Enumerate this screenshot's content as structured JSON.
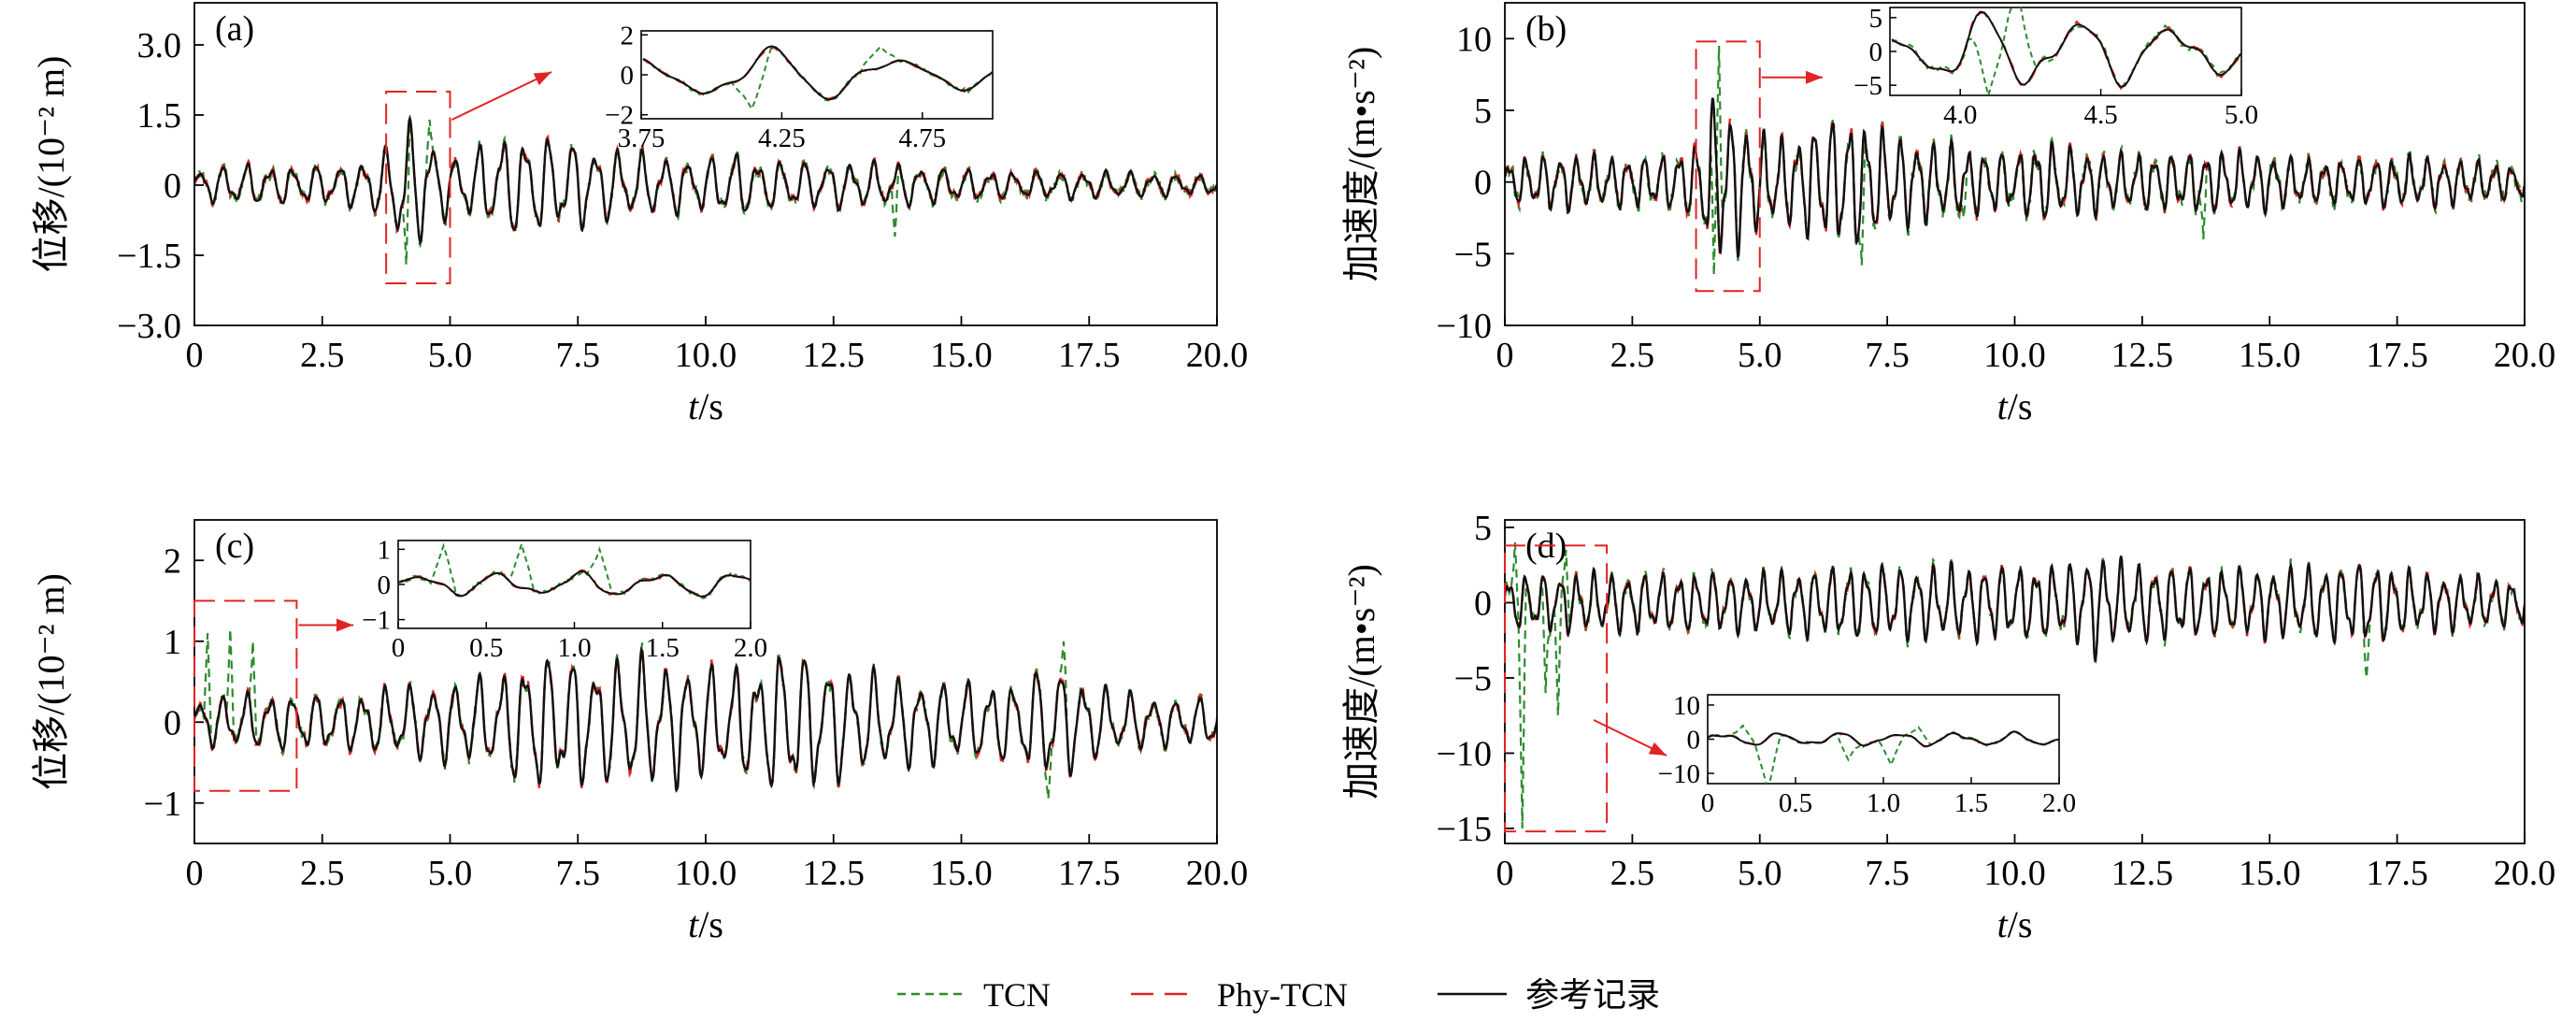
{
  "figure": {
    "legend": [
      {
        "label": "TCN",
        "color": "#2e8b2e",
        "dash": "dashed"
      },
      {
        "label": "Phy-TCN",
        "color": "#e02424",
        "dash": "longdash"
      },
      {
        "label": "参考记录",
        "color": "#111111",
        "dash": "solid"
      }
    ]
  },
  "chart_data": [
    {
      "id": "a",
      "type": "line",
      "panel_label": "(a)",
      "xlabel_italic": "t",
      "xlabel_rest": "/s",
      "ylabel": "位移/(10⁻² m)",
      "xlim": [
        0,
        20
      ],
      "ylim": [
        -3,
        3.9
      ],
      "xticks": [
        0,
        2.5,
        5,
        7.5,
        10,
        12.5,
        15,
        17.5,
        20
      ],
      "xtick_labels": [
        "0",
        "2.5",
        "5.0",
        "7.5",
        "10.0",
        "12.5",
        "15.0",
        "17.5",
        "20.0"
      ],
      "yticks": [
        -3,
        -1.5,
        0,
        1.5,
        3
      ],
      "ytick_labels": [
        "−3.0",
        "−1.5",
        "0",
        "1.5",
        "3.0"
      ],
      "series": [
        {
          "name": "参考记录",
          "color": "#111111",
          "dash": "solid",
          "x": [
            0,
            1,
            2,
            3,
            3.7,
            4.0,
            4.3,
            4.6,
            5.0,
            5.5,
            6,
            6.5,
            7,
            7.5,
            8,
            9,
            10,
            10.5,
            11,
            12,
            13,
            14,
            15,
            16,
            17,
            18,
            19,
            20
          ],
          "amplitude": [
            0.35,
            0.45,
            0.4,
            0.45,
            0.7,
            1.45,
            1.35,
            1.1,
            0.6,
            0.8,
            1.05,
            1.1,
            1.0,
            0.95,
            0.8,
            0.65,
            0.55,
            0.75,
            0.55,
            0.5,
            0.5,
            0.45,
            0.35,
            0.3,
            0.3,
            0.3,
            0.25,
            0.2
          ],
          "freq_hz": 2.2
        },
        {
          "name": "Phy-TCN",
          "color": "#e02424",
          "dash": "longdash",
          "follows": "参考记录",
          "noise": 0.06
        },
        {
          "name": "TCN",
          "color": "#2e8b2e",
          "dash": "dashed",
          "follows": "参考记录",
          "noise": 0.1,
          "spikes": [
            {
              "x": 4.15,
              "y": -1.7
            },
            {
              "x": 4.6,
              "y": 1.4
            },
            {
              "x": 13.7,
              "y": -1.1
            }
          ]
        }
      ],
      "zoom_box": {
        "x": [
          3.75,
          5.0
        ],
        "y": [
          -2.1,
          2.0
        ]
      },
      "inset": {
        "xlim": [
          3.75,
          5.0
        ],
        "ylim": [
          -2.2,
          2.2
        ],
        "xticks": [
          3.75,
          4.25,
          4.75
        ],
        "xtick_labels": [
          "3.75",
          "4.25",
          "4.75"
        ],
        "yticks": [
          -2,
          0,
          2
        ],
        "ytick_labels": [
          "−2",
          "0",
          "2"
        ]
      }
    },
    {
      "id": "b",
      "type": "line",
      "panel_label": "(b)",
      "xlabel_italic": "t",
      "xlabel_rest": "/s",
      "ylabel": "加速度/(m•s⁻²)",
      "xlim": [
        0,
        20
      ],
      "ylim": [
        -10,
        12.5
      ],
      "xticks": [
        0,
        2.5,
        5,
        7.5,
        10,
        12.5,
        15,
        17.5,
        20
      ],
      "xtick_labels": [
        "0",
        "2.5",
        "5.0",
        "7.5",
        "10.0",
        "12.5",
        "15.0",
        "17.5",
        "20.0"
      ],
      "yticks": [
        -10,
        -5,
        0,
        5,
        10
      ],
      "ytick_labels": [
        "−10",
        "−5",
        "0",
        "5",
        "10"
      ],
      "series": [
        {
          "name": "参考记录",
          "color": "#111111",
          "dash": "solid",
          "x": [
            0,
            1,
            2,
            3,
            3.7,
            4.1,
            4.5,
            5.0,
            5.5,
            6,
            6.5,
            7,
            7.5,
            8,
            9,
            10,
            10.5,
            11,
            12,
            13,
            14,
            15,
            16,
            17,
            18,
            19,
            20
          ],
          "amplitude": [
            1.5,
            2.0,
            1.8,
            1.8,
            2.5,
            6.0,
            5.0,
            3.5,
            3.0,
            4.0,
            4.5,
            4.5,
            3.5,
            3.0,
            2.5,
            2.0,
            3.0,
            2.5,
            2.0,
            2.0,
            2.2,
            2.0,
            1.5,
            1.8,
            1.8,
            1.5,
            1.2
          ],
          "freq_hz": 3.0
        },
        {
          "name": "Phy-TCN",
          "color": "#e02424",
          "dash": "longdash",
          "follows": "参考记录",
          "noise": 0.25
        },
        {
          "name": "TCN",
          "color": "#2e8b2e",
          "dash": "dashed",
          "follows": "参考记录",
          "noise": 0.5,
          "spikes": [
            {
              "x": 4.2,
              "y": 9.5
            },
            {
              "x": 4.1,
              "y": -6.5
            },
            {
              "x": 7.0,
              "y": -5.8
            },
            {
              "x": 13.7,
              "y": -4.0
            },
            {
              "x": 9.0,
              "y": -2.5
            }
          ]
        }
      ],
      "zoom_box": {
        "x": [
          3.75,
          5.0
        ],
        "y": [
          -7.6,
          9.8
        ]
      },
      "inset": {
        "xlim": [
          3.75,
          5.0
        ],
        "ylim": [
          -6.5,
          6.5
        ],
        "xticks": [
          4.0,
          4.5,
          5.0
        ],
        "xtick_labels": [
          "4.0",
          "4.5",
          "5.0"
        ],
        "yticks": [
          -5,
          0,
          5
        ],
        "ytick_labels": [
          "−5",
          "0",
          "5"
        ]
      }
    },
    {
      "id": "c",
      "type": "line",
      "panel_label": "(c)",
      "xlabel_italic": "t",
      "xlabel_rest": "/s",
      "ylabel": "位移/(10⁻² m)",
      "xlim": [
        0,
        20
      ],
      "ylim": [
        -1.5,
        2.5
      ],
      "xticks": [
        0,
        2.5,
        5,
        7.5,
        10,
        12.5,
        15,
        17.5,
        20
      ],
      "xtick_labels": [
        "0",
        "2.5",
        "5.0",
        "7.5",
        "10.0",
        "12.5",
        "15.0",
        "17.5",
        "20.0"
      ],
      "yticks": [
        -1,
        0,
        1,
        2
      ],
      "ytick_labels": [
        "−1",
        "0",
        "1",
        "2"
      ],
      "series": [
        {
          "name": "参考记录",
          "color": "#111111",
          "dash": "solid",
          "x": [
            0,
            1,
            2,
            3,
            4,
            5,
            6,
            6.5,
            7,
            7.5,
            8,
            8.5,
            9,
            10,
            11,
            11.5,
            12,
            13,
            14,
            15,
            16,
            16.8,
            17.5,
            18,
            19,
            20
          ],
          "amplitude": [
            0.3,
            0.35,
            0.35,
            0.35,
            0.45,
            0.5,
            0.6,
            0.85,
            0.85,
            0.8,
            0.75,
            0.85,
            0.8,
            0.7,
            0.7,
            0.95,
            0.85,
            0.65,
            0.55,
            0.5,
            0.5,
            0.75,
            0.5,
            0.4,
            0.3,
            0.3
          ],
          "freq_hz": 2.2
        },
        {
          "name": "Phy-TCN",
          "color": "#e02424",
          "dash": "longdash",
          "follows": "参考记录",
          "noise": 0.04
        },
        {
          "name": "TCN",
          "color": "#2e8b2e",
          "dash": "dashed",
          "follows": "参考记录",
          "noise": 0.06,
          "spikes": [
            {
              "x": 0.25,
              "y": 1.1
            },
            {
              "x": 0.7,
              "y": 1.15
            },
            {
              "x": 1.15,
              "y": 1.0
            },
            {
              "x": 16.7,
              "y": -0.95
            },
            {
              "x": 17.0,
              "y": 1.0
            }
          ]
        }
      ],
      "zoom_box": {
        "x": [
          0,
          2.0
        ],
        "y": [
          -0.85,
          1.5
        ]
      },
      "inset": {
        "xlim": [
          0,
          2.0
        ],
        "ylim": [
          -1.25,
          1.25
        ],
        "xticks": [
          0,
          0.5,
          1.0,
          1.5,
          2.0
        ],
        "xtick_labels": [
          "0",
          "0.5",
          "1.0",
          "1.5",
          "2.0"
        ],
        "yticks": [
          -1,
          0,
          1
        ],
        "ytick_labels": [
          "−1",
          "0",
          "1"
        ]
      }
    },
    {
      "id": "d",
      "type": "line",
      "panel_label": "(d)",
      "xlabel_italic": "t",
      "xlabel_rest": "/s",
      "ylabel": "加速度/(m•s⁻²)",
      "xlim": [
        0,
        20
      ],
      "ylim": [
        -16,
        5.5
      ],
      "xticks": [
        0,
        2.5,
        5,
        7.5,
        10,
        12.5,
        15,
        17.5,
        20
      ],
      "xtick_labels": [
        "0",
        "2.5",
        "5.0",
        "7.5",
        "10.0",
        "12.5",
        "15.0",
        "17.5",
        "20.0"
      ],
      "yticks": [
        -15,
        -10,
        -5,
        0,
        5
      ],
      "ytick_labels": [
        "−15",
        "−10",
        "−5",
        "0",
        "5"
      ],
      "series": [
        {
          "name": "参考记录",
          "color": "#111111",
          "dash": "solid",
          "x": [
            0,
            1,
            2,
            3,
            4,
            5,
            6,
            7,
            8,
            9,
            10,
            11,
            11.6,
            12,
            13,
            14,
            15,
            16,
            17,
            18,
            19,
            20
          ],
          "amplitude": [
            1.8,
            2.0,
            2.0,
            2.0,
            2.0,
            2.0,
            2.3,
            2.5,
            2.5,
            2.5,
            2.5,
            2.5,
            3.5,
            2.8,
            2.5,
            2.3,
            2.3,
            2.5,
            2.8,
            2.0,
            1.8,
            1.5
          ],
          "freq_hz": 3.0
        },
        {
          "name": "Phy-TCN",
          "color": "#e02424",
          "dash": "longdash",
          "follows": "参考记录",
          "noise": 0.2
        },
        {
          "name": "TCN",
          "color": "#2e8b2e",
          "dash": "dashed",
          "follows": "参考记录",
          "noise": 0.35,
          "spikes": [
            {
              "x": 0.35,
              "y": -15
            },
            {
              "x": 0.2,
              "y": 4.0
            },
            {
              "x": 0.8,
              "y": -6.0
            },
            {
              "x": 1.05,
              "y": -7.5
            },
            {
              "x": 1.2,
              "y": 3.5
            },
            {
              "x": 16.9,
              "y": -5.0
            }
          ]
        }
      ],
      "zoom_box": {
        "x": [
          0,
          2.0
        ],
        "y": [
          -15.2,
          3.8
        ]
      },
      "inset": {
        "xlim": [
          0,
          2.0
        ],
        "ylim": [
          -13,
          13
        ],
        "xticks": [
          0,
          0.5,
          1.0,
          1.5,
          2.0
        ],
        "xtick_labels": [
          "0",
          "0.5",
          "1.0",
          "1.5",
          "2.0"
        ],
        "yticks": [
          -10,
          0,
          10
        ],
        "ytick_labels": [
          "−10",
          "0",
          "10"
        ]
      }
    }
  ]
}
